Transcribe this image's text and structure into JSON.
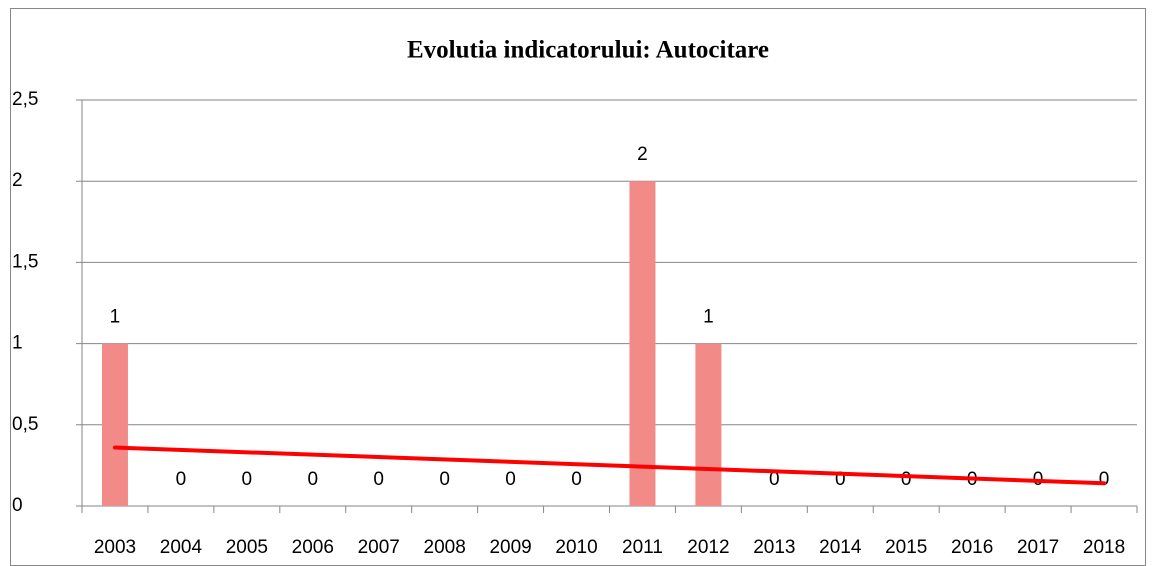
{
  "chart_data": {
    "type": "bar",
    "title": "Evolutia indicatorului: Autocitare",
    "categories": [
      "2003",
      "2004",
      "2005",
      "2006",
      "2007",
      "2008",
      "2009",
      "2010",
      "2011",
      "2012",
      "2013",
      "2014",
      "2015",
      "2016",
      "2017",
      "2018"
    ],
    "values": [
      1,
      0,
      0,
      0,
      0,
      0,
      0,
      0,
      2,
      1,
      0,
      0,
      0,
      0,
      0,
      0
    ],
    "color": "#f28b88",
    "ylim": [
      0,
      2.5
    ],
    "yticks": [
      0,
      {
        "value": 0.5,
        "label": "0,5"
      },
      1,
      {
        "value": 1.5,
        "label": "1,5"
      },
      2,
      {
        "value": 2.5,
        "label": "2,5"
      }
    ],
    "grid": true,
    "trendline": {
      "color": "#ff0000",
      "values": [
        0.36,
        0.14
      ]
    }
  }
}
